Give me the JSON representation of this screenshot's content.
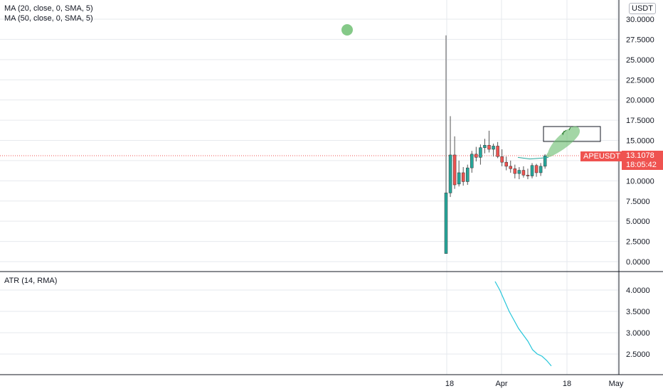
{
  "indicators": {
    "ma20": "MA (20, close, 0, SMA, 5)",
    "ma50": "MA (50, close, 0, SMA, 5)",
    "atr": "ATR (14, RMA)"
  },
  "price_axis": {
    "currency_button": "USDT",
    "ticks": [
      "30.0000",
      "27.5000",
      "25.0000",
      "22.5000",
      "20.0000",
      "17.5000",
      "15.0000",
      "12.5000",
      "10.0000",
      "7.5000",
      "5.0000",
      "2.5000",
      "0.0000"
    ]
  },
  "atr_axis": {
    "ticks": [
      "4.0000",
      "3.5000",
      "3.0000",
      "2.5000"
    ]
  },
  "time_axis": {
    "ticks": [
      "18",
      "Apr",
      "18",
      "May"
    ]
  },
  "current_price": {
    "symbol": "APEUSDT",
    "price": "13.1078",
    "countdown": "18:05:42"
  },
  "colors": {
    "up": "#26a69a",
    "down": "#ef5350",
    "atr_line": "#26c6da",
    "annotation_green": "#66bb6a",
    "grid": "#e6e9ee"
  },
  "chart_data": [
    {
      "type": "candlestick",
      "title": "",
      "ylim": [
        0,
        30
      ],
      "x_ticks": [
        "18",
        "Apr",
        "18",
        "May"
      ],
      "candles": [
        {
          "o": 1.0,
          "h": 28.0,
          "l": 1.0,
          "c": 8.5
        },
        {
          "o": 8.5,
          "h": 18.0,
          "l": 8.0,
          "c": 13.2
        },
        {
          "o": 13.2,
          "h": 15.5,
          "l": 9.0,
          "c": 9.5
        },
        {
          "o": 9.6,
          "h": 12.5,
          "l": 9.3,
          "c": 11.0
        },
        {
          "o": 11.0,
          "h": 11.7,
          "l": 9.4,
          "c": 9.9
        },
        {
          "o": 9.9,
          "h": 12.0,
          "l": 9.5,
          "c": 11.6
        },
        {
          "o": 11.6,
          "h": 13.7,
          "l": 11.0,
          "c": 13.3
        },
        {
          "o": 13.3,
          "h": 14.2,
          "l": 12.4,
          "c": 12.9
        },
        {
          "o": 12.9,
          "h": 14.5,
          "l": 12.0,
          "c": 14.1
        },
        {
          "o": 14.1,
          "h": 15.2,
          "l": 13.4,
          "c": 14.4
        },
        {
          "o": 14.4,
          "h": 16.2,
          "l": 13.5,
          "c": 13.9
        },
        {
          "o": 13.9,
          "h": 14.6,
          "l": 13.0,
          "c": 14.3
        },
        {
          "o": 14.3,
          "h": 14.8,
          "l": 12.8,
          "c": 13.0
        },
        {
          "o": 13.0,
          "h": 13.9,
          "l": 11.8,
          "c": 12.3
        },
        {
          "o": 12.3,
          "h": 13.0,
          "l": 11.3,
          "c": 11.8
        },
        {
          "o": 11.8,
          "h": 12.5,
          "l": 11.0,
          "c": 11.5
        },
        {
          "o": 11.5,
          "h": 12.0,
          "l": 10.3,
          "c": 10.9
        },
        {
          "o": 10.9,
          "h": 11.7,
          "l": 10.2,
          "c": 11.3
        },
        {
          "o": 11.3,
          "h": 11.8,
          "l": 10.4,
          "c": 10.7
        },
        {
          "o": 10.7,
          "h": 11.5,
          "l": 10.2,
          "c": 10.6
        },
        {
          "o": 10.6,
          "h": 12.2,
          "l": 10.3,
          "c": 11.9
        },
        {
          "o": 11.9,
          "h": 12.1,
          "l": 10.5,
          "c": 11.0
        },
        {
          "o": 11.0,
          "h": 12.2,
          "l": 10.6,
          "c": 11.8
        },
        {
          "o": 11.8,
          "h": 13.3,
          "l": 11.5,
          "c": 13.1
        }
      ],
      "current_price": 13.1078
    },
    {
      "type": "line",
      "title": "ATR (14, RMA)",
      "ylim": [
        2.1,
        4.3
      ],
      "series": [
        {
          "values": [
            4.2,
            4.0,
            3.75,
            3.5,
            3.3,
            3.1,
            2.95,
            2.8,
            2.6,
            2.5,
            2.45,
            2.35,
            2.22
          ]
        }
      ]
    }
  ]
}
